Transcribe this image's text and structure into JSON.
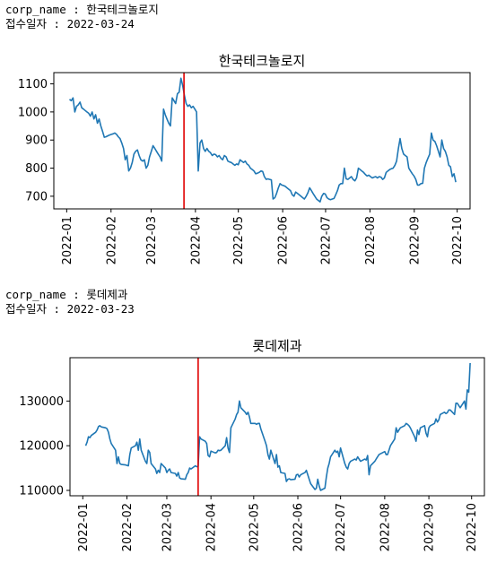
{
  "blocks": [
    {
      "meta": {
        "corp_label": "corp_name : ",
        "corp_value": "한국테크놀로지",
        "date_label": "접수일자 : ",
        "date_value": "2022-03-24"
      }
    },
    {
      "meta": {
        "corp_label": "corp_name : ",
        "corp_value": "롯데제과",
        "date_label": "접수일자 : ",
        "date_value": "2022-03-23"
      }
    }
  ],
  "colors": {
    "line": "#1f77b4",
    "marker": "#e00000",
    "axis": "#000000"
  },
  "chart_data": [
    {
      "type": "line",
      "title": "한국테크놀로지",
      "xlabel": "",
      "ylabel": "",
      "x_start": "2022-01-03",
      "x_end": "2022-09-30",
      "xlim": [
        "2021-12-23",
        "2022-10-10"
      ],
      "ylim": [
        655,
        1140
      ],
      "x_ticks": [
        "2022-01",
        "2022-02",
        "2022-03",
        "2022-04",
        "2022-05",
        "2022-06",
        "2022-07",
        "2022-08",
        "2022-09",
        "2022-10"
      ],
      "y_ticks": [
        700,
        800,
        900,
        1000,
        1100
      ],
      "vline": "2022-03-24",
      "series": [
        {
          "values": [
            1045,
            1040,
            1050,
            1000,
            1020,
            1025,
            1035,
            1015,
            1010,
            1005,
            1000,
            995,
            985,
            1000,
            975,
            990,
            960,
            975,
            950,
            930,
            910,
            912,
            915,
            918,
            920,
            922,
            925,
            920,
            912,
            905,
            890,
            870,
            830,
            845,
            790,
            800,
            820,
            850,
            860,
            865,
            845,
            830,
            825,
            830,
            800,
            810,
            840,
            860,
            880,
            870,
            860,
            850,
            840,
            825,
            1010,
            990,
            975,
            960,
            950,
            1050,
            1040,
            1030,
            1065,
            1070,
            1120,
            1095,
            1060,
            1030,
            1020,
            1025,
            1015,
            1020,
            1010,
            1000,
            790,
            890,
            900,
            870,
            860,
            870,
            860,
            855,
            845,
            850,
            848,
            840,
            845,
            835,
            830,
            845,
            840,
            825,
            822,
            820,
            815,
            810,
            815,
            812,
            830,
            825,
            820,
            825,
            815,
            810,
            800,
            795,
            790,
            780,
            782,
            785,
            790,
            788,
            770,
            760,
            762,
            760,
            758,
            690,
            695,
            710,
            730,
            745,
            740,
            738,
            735,
            730,
            725,
            720,
            705,
            700,
            715,
            710,
            705,
            700,
            695,
            690,
            700,
            712,
            730,
            720,
            710,
            700,
            690,
            685,
            680,
            700,
            710,
            708,
            695,
            690,
            688,
            690,
            692,
            705,
            720,
            740,
            745,
            745,
            800,
            762,
            760,
            765,
            770,
            760,
            755,
            765,
            800,
            795,
            790,
            785,
            778,
            772,
            775,
            770,
            765,
            768,
            770,
            765,
            770,
            768,
            760,
            765,
            785,
            790,
            795,
            798,
            800,
            810,
            825,
            870,
            905,
            870,
            850,
            845,
            840,
            800,
            790,
            780,
            772,
            760,
            740,
            740,
            745,
            746,
            800,
            820,
            835,
            850,
            925,
            900,
            895,
            880,
            860,
            840,
            900,
            870,
            860,
            840,
            810,
            805,
            770,
            780,
            750
          ]
        }
      ]
    },
    {
      "type": "line",
      "title": "롯데제과",
      "xlabel": "",
      "ylabel": "",
      "x_start": "2022-01-03",
      "x_end": "2022-09-30",
      "xlim": [
        "2021-12-23",
        "2022-10-10"
      ],
      "ylim": [
        108800,
        139700
      ],
      "x_ticks": [
        "2022-01",
        "2022-02",
        "2022-03",
        "2022-04",
        "2022-05",
        "2022-06",
        "2022-07",
        "2022-08",
        "2022-09",
        "2022-10"
      ],
      "y_ticks": [
        110000,
        120000,
        130000
      ],
      "vline": "2022-03-23",
      "series": [
        {
          "values": [
            120000,
            120800,
            122000,
            121800,
            122300,
            123000,
            123500,
            124300,
            124500,
            124200,
            124000,
            123800,
            123000,
            121500,
            120500,
            119000,
            116000,
            117500,
            116000,
            115800,
            115700,
            115600,
            115500,
            118000,
            119500,
            120000,
            120800,
            119000,
            121500,
            119000,
            116500,
            116000,
            119000,
            118500,
            116000,
            114800,
            113800,
            114500,
            114000,
            116000,
            115000,
            114000,
            114500,
            114800,
            114000,
            113800,
            113200,
            114000,
            112800,
            112600,
            112500,
            113500,
            114000,
            115000,
            114800,
            115500,
            115300,
            115400,
            122000,
            121500,
            121000,
            120500,
            117800,
            117500,
            118800,
            118400,
            118500,
            119000,
            118900,
            119000,
            120000,
            121800,
            119500,
            118500,
            124000,
            126000,
            127000,
            127500,
            130000,
            128500,
            127500,
            127000,
            127500,
            126500,
            125000,
            125000,
            124800,
            125000,
            125000,
            123800,
            121000,
            120000,
            118000,
            117000,
            119000,
            116000,
            118000,
            115200,
            115500,
            114000,
            113800,
            112000,
            112500,
            112600,
            112400,
            112500,
            113500,
            113600,
            113000,
            113500,
            114000,
            114500,
            113500,
            112500,
            111500,
            110200,
            110500,
            112500,
            111000,
            110000,
            110500,
            113000,
            115000,
            116000,
            117500,
            119000,
            118500,
            118800,
            117500,
            119500,
            116000,
            115200,
            114800,
            116000,
            116500,
            117000,
            116800,
            117500,
            117000,
            116500,
            117000,
            116800,
            117800,
            113500,
            115500,
            116500,
            117000,
            117500,
            118000,
            118200,
            118700,
            118000,
            118000,
            119000,
            120000,
            121500,
            124000,
            123000,
            123500,
            124000,
            124500,
            125000,
            124800,
            124500,
            124000,
            122000,
            121000,
            123500,
            122500,
            124000,
            124500,
            122800,
            122000,
            124000,
            124500,
            125000,
            126000,
            125300,
            125800,
            127000,
            127500,
            127200,
            127400,
            128000,
            128000,
            127000,
            129500,
            129500,
            129000,
            128500,
            130000,
            128200,
            132500,
            132000,
            138500
          ]
        }
      ]
    }
  ]
}
